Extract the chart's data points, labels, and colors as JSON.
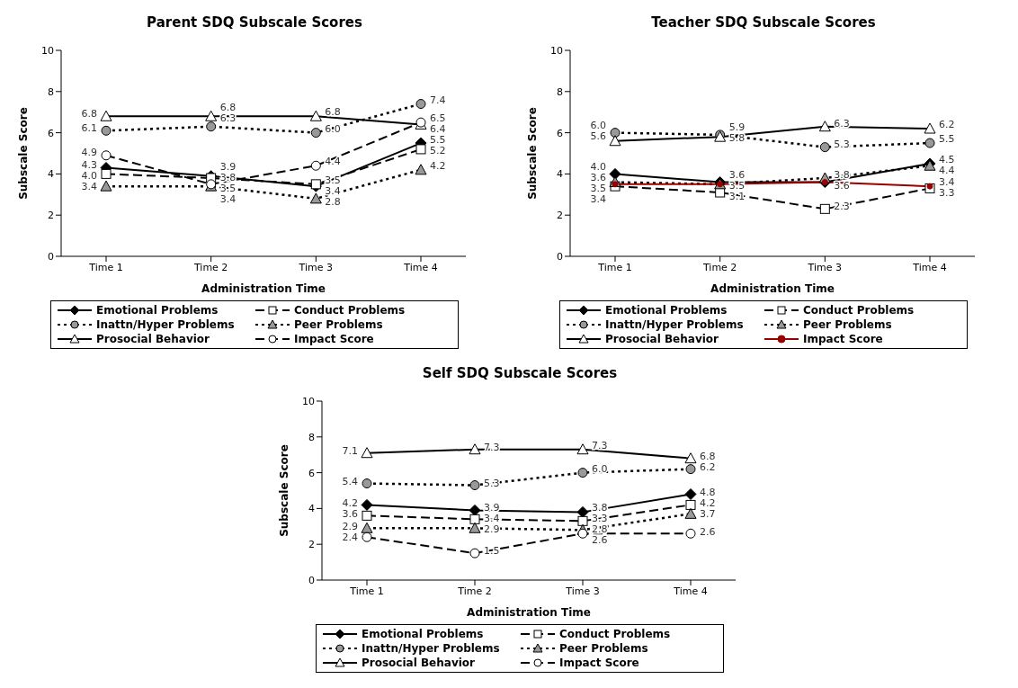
{
  "chart_data": [
    {
      "type": "line",
      "title": "Parent SDQ Subscale Scores",
      "xlabel": "Administration Time",
      "ylabel": "Subscale Score",
      "categories": [
        "Time 1",
        "Time 2",
        "Time 3",
        "Time 4"
      ],
      "ylim": [
        0,
        10
      ],
      "yticks": [
        0,
        2,
        4,
        6,
        8,
        10
      ],
      "grid": false,
      "legend": "bottom",
      "series": [
        {
          "name": "Emotional Problems",
          "color": "#000000",
          "marker": "diamond",
          "colors": [
            "#000000",
            "#000000",
            "#000000",
            "#000000"
          ],
          "line_style": "solid",
          "values": [
            4.3,
            3.9,
            3.4,
            5.5
          ],
          "value_labels": [
            "4.3",
            "3.9",
            "3.4",
            "5.5"
          ]
        },
        {
          "name": "Conduct Problems",
          "color": "#000000",
          "marker": "square",
          "colors": [
            "#ffffff",
            "#ffffff",
            "#ffffff",
            "#ffffff"
          ],
          "line_style": "dashed",
          "values": [
            4.0,
            3.8,
            3.5,
            5.2
          ],
          "value_labels": [
            "4.0",
            "3.8",
            "3.5",
            "5.2"
          ]
        },
        {
          "name": "Inattn/Hyper Problems",
          "color": "#000000",
          "marker": "circle",
          "colors": [
            "#999999",
            "#999999",
            "#999999",
            "#999999"
          ],
          "line_style": "dotted",
          "values": [
            6.1,
            6.3,
            6.0,
            7.4
          ],
          "value_labels": [
            "6.1",
            "6.3",
            "6.0",
            "7.4"
          ]
        },
        {
          "name": "Peer Problems",
          "color": "#000000",
          "marker": "triangle",
          "colors": [
            "#999999",
            "#999999",
            "#999999",
            "#999999"
          ],
          "line_style": "dotted",
          "values": [
            3.4,
            3.4,
            2.8,
            4.2
          ],
          "value_labels": [
            "3.4",
            "3.4",
            "2.8",
            "4.2"
          ]
        },
        {
          "name": "Prosocial Behavior",
          "color": "#000000",
          "marker": "triangle",
          "colors": [
            "#ffffff",
            "#ffffff",
            "#ffffff",
            "#ffffff"
          ],
          "line_style": "solid",
          "values": [
            6.8,
            6.8,
            6.8,
            6.4
          ],
          "value_labels": [
            "6.8",
            "6.8",
            "6.8",
            "6.4"
          ]
        },
        {
          "name": "Impact Score",
          "color": "#000000",
          "marker": "circle",
          "colors": [
            "#ffffff",
            "#ffffff",
            "#ffffff",
            "#ffffff"
          ],
          "line_style": "dashed",
          "values": [
            4.9,
            3.5,
            4.4,
            6.5
          ],
          "value_labels": [
            "4.9",
            "3.5",
            "4.4",
            "6.5"
          ]
        }
      ]
    },
    {
      "type": "line",
      "title": "Teacher SDQ Subscale Scores",
      "xlabel": "Administration Time",
      "ylabel": "Subscale Score",
      "categories": [
        "Time 1",
        "Time 2",
        "Time 3",
        "Time 4"
      ],
      "ylim": [
        0,
        10
      ],
      "yticks": [
        0,
        2,
        4,
        6,
        8,
        10
      ],
      "grid": false,
      "legend": "bottom",
      "series": [
        {
          "name": "Emotional Problems",
          "color": "#000000",
          "marker": "diamond",
          "colors": [
            "#000000",
            "#000000",
            "#000000",
            "#000000"
          ],
          "line_style": "solid",
          "values": [
            4.0,
            3.6,
            3.6,
            4.5
          ],
          "value_labels": [
            "4.0",
            "3.6",
            "3.6",
            "4.5"
          ]
        },
        {
          "name": "Conduct Problems",
          "color": "#000000",
          "marker": "square",
          "colors": [
            "#ffffff",
            "#ffffff",
            "#ffffff",
            "#ffffff"
          ],
          "line_style": "dashed",
          "values": [
            3.4,
            3.1,
            2.3,
            3.3
          ],
          "value_labels": [
            "3.4",
            "3.1",
            "2.3",
            "3.3"
          ]
        },
        {
          "name": "Inattn/Hyper Problems",
          "color": "#000000",
          "marker": "circle",
          "colors": [
            "#999999",
            "#999999",
            "#999999",
            "#999999"
          ],
          "line_style": "dotted",
          "values": [
            6.0,
            5.9,
            5.3,
            5.5
          ],
          "value_labels": [
            "6.0",
            "5.9",
            "5.3",
            "5.5"
          ]
        },
        {
          "name": "Peer Problems",
          "color": "#000000",
          "marker": "triangle",
          "colors": [
            "#999999",
            "#999999",
            "#999999",
            "#999999"
          ],
          "line_style": "dotted",
          "values": [
            3.6,
            3.5,
            3.8,
            4.4
          ],
          "value_labels": [
            "3.6",
            "3.5",
            "3.8",
            "4.4"
          ]
        },
        {
          "name": "Prosocial Behavior",
          "color": "#000000",
          "marker": "triangle",
          "colors": [
            "#ffffff",
            "#ffffff",
            "#ffffff",
            "#ffffff"
          ],
          "line_style": "solid",
          "values": [
            5.6,
            5.8,
            6.3,
            6.2
          ],
          "value_labels": [
            "5.6",
            "5.8",
            "6.3",
            "6.2"
          ]
        },
        {
          "name": "Impact Score",
          "color": "#990000",
          "marker": "circle",
          "colors": [
            "#990000",
            "#990000",
            "#990000",
            "#990000"
          ],
          "line_style": "solid",
          "values": [
            3.5,
            3.5,
            3.6,
            3.4
          ],
          "value_labels": [
            "3.5",
            null,
            null,
            "3.4"
          ]
        }
      ]
    },
    {
      "type": "line",
      "title": "Self SDQ Subscale Scores",
      "xlabel": "Administration Time",
      "ylabel": "Subscale Score",
      "categories": [
        "Time 1",
        "Time 2",
        "Time 3",
        "Time 4"
      ],
      "ylim": [
        0,
        10
      ],
      "yticks": [
        0,
        2,
        4,
        6,
        8,
        10
      ],
      "grid": false,
      "legend": "bottom",
      "series": [
        {
          "name": "Emotional Problems",
          "color": "#000000",
          "marker": "diamond",
          "colors": [
            "#000000",
            "#000000",
            "#000000",
            "#000000"
          ],
          "line_style": "solid",
          "values": [
            4.2,
            3.9,
            3.8,
            4.8
          ],
          "value_labels": [
            "4.2",
            "3.9",
            "3.8",
            "4.8"
          ]
        },
        {
          "name": "Conduct Problems",
          "color": "#000000",
          "marker": "square",
          "colors": [
            "#ffffff",
            "#ffffff",
            "#ffffff",
            "#ffffff"
          ],
          "line_style": "dashed",
          "values": [
            3.6,
            3.4,
            3.3,
            4.2
          ],
          "value_labels": [
            "3.6",
            "3.4",
            "3.3",
            "4.2"
          ]
        },
        {
          "name": "Inattn/Hyper Problems",
          "color": "#000000",
          "marker": "circle",
          "colors": [
            "#999999",
            "#999999",
            "#999999",
            "#999999"
          ],
          "line_style": "dotted",
          "values": [
            5.4,
            5.3,
            6.0,
            6.2
          ],
          "value_labels": [
            "5.4",
            "5.3",
            "6.0",
            "6.2"
          ]
        },
        {
          "name": "Peer Problems",
          "color": "#000000",
          "marker": "triangle",
          "colors": [
            "#999999",
            "#999999",
            "#999999",
            "#999999"
          ],
          "line_style": "dotted",
          "values": [
            2.9,
            2.9,
            2.8,
            3.7
          ],
          "value_labels": [
            "2.9",
            "2.9",
            "2.8",
            "3.7"
          ]
        },
        {
          "name": "Prosocial Behavior",
          "color": "#000000",
          "marker": "triangle",
          "colors": [
            "#ffffff",
            "#ffffff",
            "#ffffff",
            "#ffffff"
          ],
          "line_style": "solid",
          "values": [
            7.1,
            7.3,
            7.3,
            6.8
          ],
          "value_labels": [
            "7.1",
            "7.3",
            "7.3",
            "6.8"
          ]
        },
        {
          "name": "Impact Score",
          "color": "#000000",
          "marker": "circle",
          "colors": [
            "#ffffff",
            "#ffffff",
            "#ffffff",
            "#ffffff"
          ],
          "line_style": "dashed",
          "values": [
            2.4,
            1.5,
            2.6,
            2.6
          ],
          "value_labels": [
            "2.4",
            "1.5",
            "2.6",
            "2.6"
          ]
        }
      ]
    }
  ]
}
